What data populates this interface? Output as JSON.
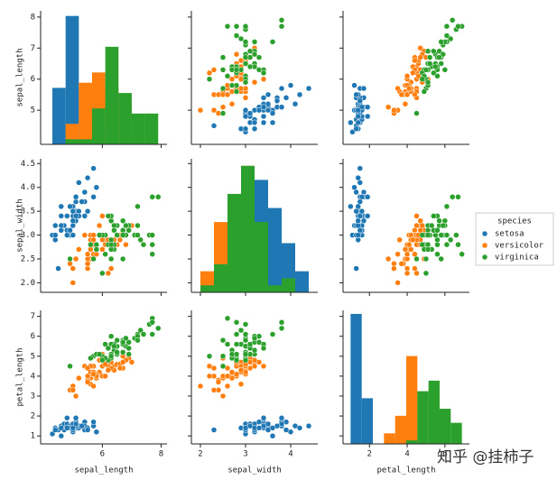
{
  "chart_data": {
    "type": "pairplot",
    "legend_title": "species",
    "legend": "right",
    "watermark": "知乎 @挂柿子",
    "axes": [
      {
        "label": "sepal_length",
        "lim": [
          3.9,
          8.2
        ],
        "xticks": [
          6,
          8
        ],
        "yticks": [
          5,
          6,
          7,
          8
        ],
        "bins": [
          4.3,
          4.75,
          5.2,
          5.65,
          6.1,
          6.55,
          7.0,
          7.45,
          7.9
        ],
        "hist_ylim": [
          0,
          26
        ]
      },
      {
        "label": "sepal_width",
        "lim": [
          1.8,
          4.6
        ],
        "xticks": [
          2,
          3,
          4
        ],
        "yticks": [
          {
            "value": 2,
            "label": "2.0"
          },
          2.5,
          {
            "value": 3,
            "label": "3.0"
          },
          3.5,
          {
            "value": 4,
            "label": "4.0"
          },
          4.5
        ],
        "bins": [
          2.0,
          2.3,
          2.6,
          2.9,
          3.2,
          3.5,
          3.8,
          4.1,
          4.4
        ],
        "hist_ylim": [
          0,
          19
        ]
      },
      {
        "label": "petal_length",
        "lim": [
          0.6,
          7.3
        ],
        "xticks": [
          2,
          4,
          6
        ],
        "yticks": [
          1,
          2,
          3,
          4,
          5,
          6,
          7
        ],
        "bins": [
          1.0,
          1.59,
          2.18,
          2.77,
          3.36,
          3.95,
          4.54,
          5.13,
          5.72,
          6.31,
          6.9
        ],
        "hist_ylim": [
          0,
          38
        ]
      }
    ],
    "series": [
      {
        "name": "setosa",
        "color": "#1f77b4",
        "values": [
          [
            5.1,
            4.9,
            4.7,
            4.6,
            5.0,
            5.4,
            4.6,
            5.0,
            4.4,
            4.9,
            5.4,
            4.8,
            4.8,
            4.3,
            5.8,
            5.7,
            5.4,
            5.1,
            5.7,
            5.1,
            5.4,
            5.1,
            4.6,
            5.1,
            4.8,
            5.0,
            5.0,
            5.2,
            5.2,
            4.7,
            4.8,
            5.4,
            5.2,
            5.5,
            4.9,
            5.0,
            5.5,
            4.9,
            4.4,
            5.1,
            5.0,
            4.5,
            4.4,
            5.0,
            5.1,
            4.8,
            5.1,
            4.6,
            5.3,
            5.0
          ],
          [
            3.5,
            3.0,
            3.2,
            3.1,
            3.6,
            3.9,
            3.4,
            3.4,
            2.9,
            3.1,
            3.7,
            3.4,
            3.0,
            3.0,
            4.0,
            4.4,
            3.9,
            3.5,
            3.8,
            3.8,
            3.4,
            3.7,
            3.6,
            3.3,
            3.4,
            3.0,
            3.4,
            3.5,
            3.4,
            3.2,
            3.1,
            3.4,
            4.1,
            4.2,
            3.1,
            3.2,
            3.5,
            3.6,
            3.0,
            3.4,
            3.5,
            2.3,
            3.2,
            3.5,
            3.8,
            3.0,
            3.8,
            3.2,
            3.7,
            3.3
          ],
          [
            1.4,
            1.4,
            1.3,
            1.5,
            1.4,
            1.7,
            1.4,
            1.5,
            1.4,
            1.5,
            1.5,
            1.6,
            1.4,
            1.1,
            1.2,
            1.5,
            1.3,
            1.4,
            1.7,
            1.5,
            1.7,
            1.5,
            1.0,
            1.7,
            1.9,
            1.6,
            1.6,
            1.5,
            1.4,
            1.6,
            1.6,
            1.5,
            1.5,
            1.4,
            1.5,
            1.2,
            1.3,
            1.4,
            1.3,
            1.5,
            1.3,
            1.3,
            1.3,
            1.6,
            1.9,
            1.4,
            1.6,
            1.4,
            1.5,
            1.4
          ]
        ],
        "counts": [
          [
            11,
            25,
            11,
            3,
            0,
            0,
            0,
            0
          ],
          [
            0,
            1,
            0,
            11,
            16,
            12,
            7,
            3
          ],
          [
            37,
            13,
            0,
            0,
            0,
            0,
            0,
            0,
            0,
            0
          ]
        ]
      },
      {
        "name": "versicolor",
        "color": "#ff7f0e",
        "values": [
          [
            7.0,
            6.4,
            6.9,
            5.5,
            6.5,
            5.7,
            6.3,
            4.9,
            6.6,
            5.2,
            5.0,
            5.9,
            6.0,
            6.1,
            5.6,
            6.7,
            5.6,
            5.8,
            6.2,
            5.6,
            5.9,
            6.1,
            6.3,
            6.1,
            6.4,
            6.6,
            6.8,
            6.7,
            6.0,
            5.7,
            5.5,
            5.5,
            5.8,
            6.0,
            5.4,
            6.0,
            6.7,
            6.3,
            5.6,
            5.5,
            5.5,
            6.1,
            5.8,
            5.0,
            5.6,
            5.7,
            5.7,
            6.2,
            5.1,
            5.7
          ],
          [
            3.2,
            3.2,
            3.1,
            2.3,
            2.8,
            2.8,
            3.3,
            2.4,
            2.9,
            2.7,
            2.0,
            3.0,
            2.2,
            2.9,
            2.9,
            3.1,
            3.0,
            2.7,
            2.2,
            2.5,
            3.2,
            2.8,
            2.5,
            2.8,
            2.9,
            3.0,
            2.8,
            3.0,
            2.9,
            2.6,
            2.4,
            2.4,
            2.7,
            2.7,
            3.0,
            3.4,
            3.1,
            2.3,
            3.0,
            2.5,
            2.6,
            3.0,
            2.6,
            2.3,
            2.7,
            3.0,
            2.9,
            2.9,
            2.5,
            2.8
          ],
          [
            4.7,
            4.5,
            4.9,
            4.0,
            4.6,
            4.5,
            4.7,
            3.3,
            4.6,
            3.9,
            3.5,
            4.2,
            4.0,
            4.7,
            3.6,
            4.4,
            4.5,
            4.1,
            4.5,
            3.9,
            4.8,
            4.0,
            4.9,
            4.7,
            4.3,
            4.4,
            4.8,
            5.0,
            4.5,
            3.5,
            3.8,
            3.7,
            3.9,
            5.1,
            4.5,
            4.5,
            4.7,
            4.4,
            4.1,
            4.0,
            4.4,
            4.6,
            4.0,
            3.3,
            4.2,
            4.2,
            4.2,
            4.3,
            3.0,
            4.1
          ]
        ],
        "counts": [
          [
            0,
            4,
            12,
            14,
            11,
            8,
            1,
            0
          ],
          [
            3,
            10,
            14,
            18,
            5,
            0,
            0,
            0
          ],
          [
            0,
            0,
            0,
            3,
            8,
            25,
            14,
            0,
            0,
            0
          ]
        ]
      },
      {
        "name": "virginica",
        "color": "#2ca02c",
        "values": [
          [
            6.3,
            5.8,
            7.1,
            6.3,
            6.5,
            7.6,
            4.9,
            7.3,
            6.7,
            7.2,
            6.5,
            6.4,
            6.8,
            5.7,
            5.8,
            6.4,
            6.5,
            7.7,
            7.7,
            6.0,
            6.9,
            5.6,
            7.7,
            6.3,
            6.7,
            7.2,
            6.2,
            6.1,
            6.4,
            7.2,
            7.4,
            7.9,
            6.4,
            6.3,
            6.1,
            7.7,
            6.3,
            6.4,
            6.0,
            6.9,
            6.7,
            6.9,
            5.8,
            6.8,
            6.7,
            6.7,
            6.3,
            6.5,
            6.2,
            5.9
          ],
          [
            3.3,
            2.7,
            3.0,
            2.9,
            3.0,
            3.0,
            2.5,
            2.9,
            2.5,
            3.6,
            3.2,
            2.7,
            3.0,
            2.5,
            2.8,
            3.2,
            3.0,
            3.8,
            2.6,
            2.2,
            3.2,
            2.8,
            2.8,
            2.7,
            3.3,
            3.2,
            2.8,
            3.0,
            2.8,
            3.0,
            2.8,
            3.8,
            2.8,
            2.8,
            2.6,
            3.0,
            3.4,
            3.1,
            3.0,
            3.1,
            3.1,
            3.1,
            2.7,
            3.2,
            3.3,
            3.0,
            2.5,
            3.0,
            3.4,
            3.0
          ],
          [
            6.0,
            5.1,
            5.9,
            5.6,
            5.8,
            6.6,
            4.5,
            6.3,
            5.8,
            6.1,
            5.1,
            5.3,
            5.5,
            5.0,
            5.1,
            5.3,
            5.5,
            6.7,
            6.9,
            5.0,
            5.7,
            4.9,
            6.7,
            4.9,
            5.7,
            6.0,
            4.8,
            4.9,
            5.6,
            5.8,
            6.1,
            6.4,
            5.6,
            5.1,
            5.6,
            6.1,
            5.6,
            5.5,
            4.8,
            5.4,
            5.6,
            5.1,
            5.1,
            5.9,
            5.7,
            5.2,
            5.0,
            5.2,
            5.4,
            5.1
          ]
        ],
        "counts": [
          [
            0,
            1,
            1,
            7,
            19,
            10,
            6,
            6
          ],
          [
            1,
            4,
            14,
            18,
            10,
            1,
            2,
            0
          ],
          [
            0,
            0,
            0,
            0,
            0,
            1,
            15,
            18,
            10,
            6
          ]
        ]
      }
    ]
  }
}
